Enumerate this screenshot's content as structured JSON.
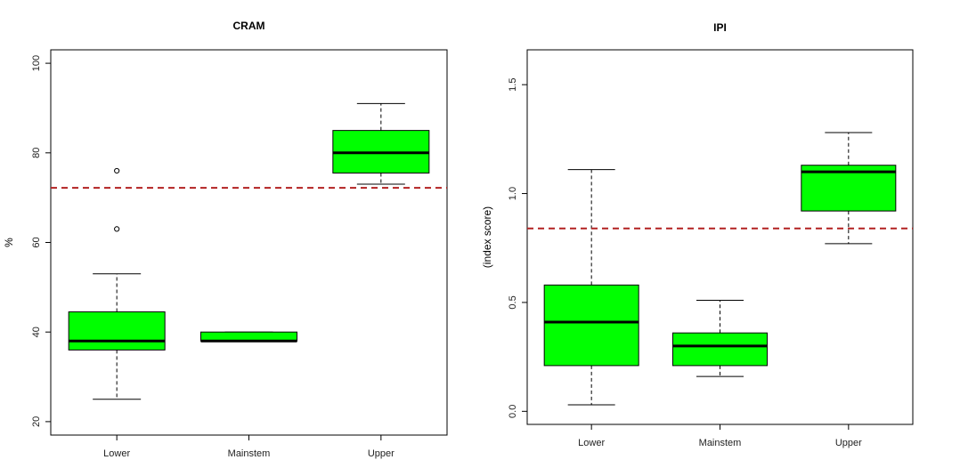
{
  "chart_data": [
    {
      "type": "boxplot",
      "title": "CRAM",
      "xlabel": "",
      "ylabel": "%",
      "ylim": [
        17,
        103
      ],
      "yticks": [
        20,
        40,
        60,
        80,
        100
      ],
      "categories": [
        "Lower",
        "Mainstem",
        "Upper"
      ],
      "boxes": [
        {
          "category": "Lower",
          "whisker_low": 25,
          "q1": 36,
          "median": 38,
          "q3": 44.5,
          "whisker_high": 53,
          "outliers": [
            63,
            76
          ]
        },
        {
          "category": "Mainstem",
          "whisker_low": 38,
          "q1": 38,
          "median": 38,
          "q3": 40,
          "whisker_high": 40,
          "outliers": []
        },
        {
          "category": "Upper",
          "whisker_low": 73,
          "q1": 75.5,
          "median": 80,
          "q3": 85,
          "whisker_high": 91,
          "outliers": []
        }
      ],
      "reference_line": {
        "value": 72.2,
        "style": "dashed",
        "color": "#b22222"
      },
      "box_color": "#00ff00",
      "grid": false
    },
    {
      "type": "boxplot",
      "title": "IPI",
      "xlabel": "",
      "ylabel": "(index score)",
      "ylim": [
        -0.06,
        1.66
      ],
      "yticks": [
        "0.0",
        "0.5",
        "1.0",
        "1.5"
      ],
      "categories": [
        "Lower",
        "Mainstem",
        "Upper"
      ],
      "boxes": [
        {
          "category": "Lower",
          "whisker_low": 0.03,
          "q1": 0.21,
          "median": 0.41,
          "q3": 0.58,
          "whisker_high": 1.11,
          "outliers": []
        },
        {
          "category": "Mainstem",
          "whisker_low": 0.16,
          "q1": 0.21,
          "median": 0.3,
          "q3": 0.36,
          "whisker_high": 0.51,
          "outliers": []
        },
        {
          "category": "Upper",
          "whisker_low": 0.77,
          "q1": 0.92,
          "median": 1.1,
          "q3": 1.13,
          "whisker_high": 1.28,
          "outliers": []
        }
      ],
      "reference_line": {
        "value": 0.84,
        "style": "dashed",
        "color": "#b22222"
      },
      "box_color": "#00ff00",
      "grid": false
    }
  ]
}
